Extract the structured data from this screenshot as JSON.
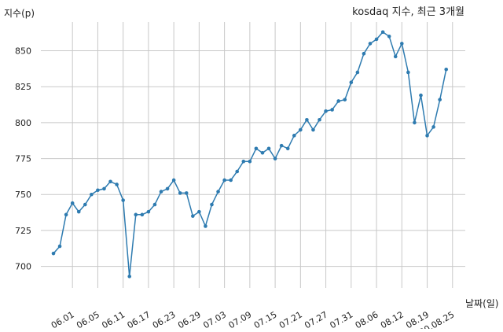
{
  "chart_data": {
    "type": "line",
    "title": "kosdaq 지수, 최근 3개월",
    "ylabel": "지수(p)",
    "xlabel": "날짜(일)",
    "ylim": [
      685,
      870
    ],
    "yticks": [
      700,
      725,
      750,
      775,
      800,
      825,
      850
    ],
    "xtick_labels": [
      "06.01",
      "06.05",
      "06.11",
      "06.17",
      "06.23",
      "06.29",
      "07.03",
      "07.09",
      "07.15",
      "07.21",
      "07.27",
      "07.31",
      "08.06",
      "08.12",
      "08.19",
      "20.08.25"
    ],
    "xtick_positions": [
      3,
      7,
      11,
      15,
      19,
      23,
      27,
      31,
      35,
      39,
      43,
      47,
      51,
      55,
      59,
      63
    ],
    "grid": true,
    "line_color": "#2e7bb0",
    "values": [
      709,
      714,
      736,
      744,
      738,
      743,
      750,
      753,
      754,
      759,
      757,
      746,
      693,
      736,
      736,
      738,
      743,
      752,
      754,
      760,
      751,
      751,
      735,
      738,
      728,
      743,
      752,
      760,
      760,
      766,
      773,
      773,
      782,
      779,
      782,
      775,
      784,
      782,
      791,
      795,
      802,
      795,
      802,
      808,
      809,
      815,
      816,
      828,
      835,
      848,
      855,
      858,
      863,
      860,
      846,
      855,
      835,
      800,
      819,
      791,
      797,
      816,
      837
    ]
  }
}
